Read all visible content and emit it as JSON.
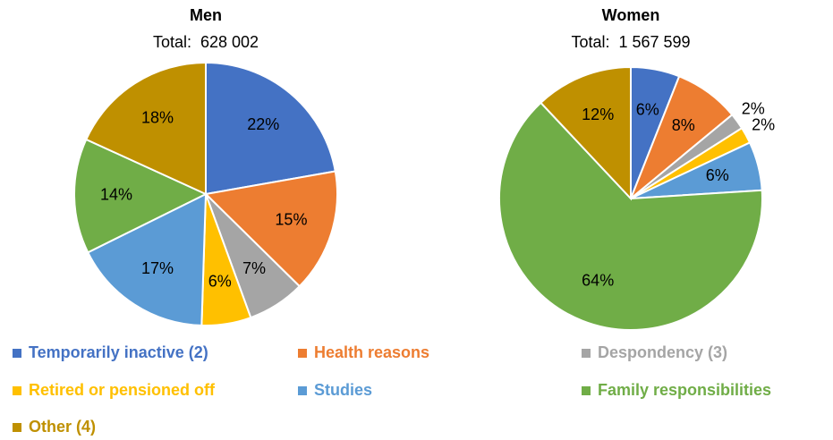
{
  "chart_data": [
    {
      "type": "pie",
      "title": "Men",
      "subtitle": "Total:  628 002",
      "categories": [
        "Temporarily inactive (2)",
        "Health reasons",
        "Despondency (3)",
        "Retired or pensioned off",
        "Studies",
        "Family responsibilities",
        "Other (4)"
      ],
      "values": [
        22,
        15,
        7,
        6,
        17,
        14,
        18
      ],
      "value_labels": [
        "22%",
        "15%",
        "7%",
        "6%",
        "17%",
        "14%",
        "18%"
      ],
      "colors": [
        "#4472c4",
        "#ed7d31",
        "#a5a5a5",
        "#ffc000",
        "#5b9bd5",
        "#70ad47",
        "#bf9000"
      ],
      "legend": "bottom"
    },
    {
      "type": "pie",
      "title": "Women",
      "subtitle": "Total:  1 567 599",
      "categories": [
        "Temporarily inactive (2)",
        "Health reasons",
        "Despondency (3)",
        "Retired or pensioned off",
        "Studies",
        "Family responsibilities",
        "Other (4)"
      ],
      "values": [
        6,
        8,
        2,
        2,
        6,
        64,
        12
      ],
      "value_labels": [
        "6%",
        "8%",
        "2%",
        "2%",
        "6%",
        "64%",
        "12%"
      ],
      "colors": [
        "#4472c4",
        "#ed7d31",
        "#a5a5a5",
        "#ffc000",
        "#5b9bd5",
        "#70ad47",
        "#bf9000"
      ]
    }
  ]
}
